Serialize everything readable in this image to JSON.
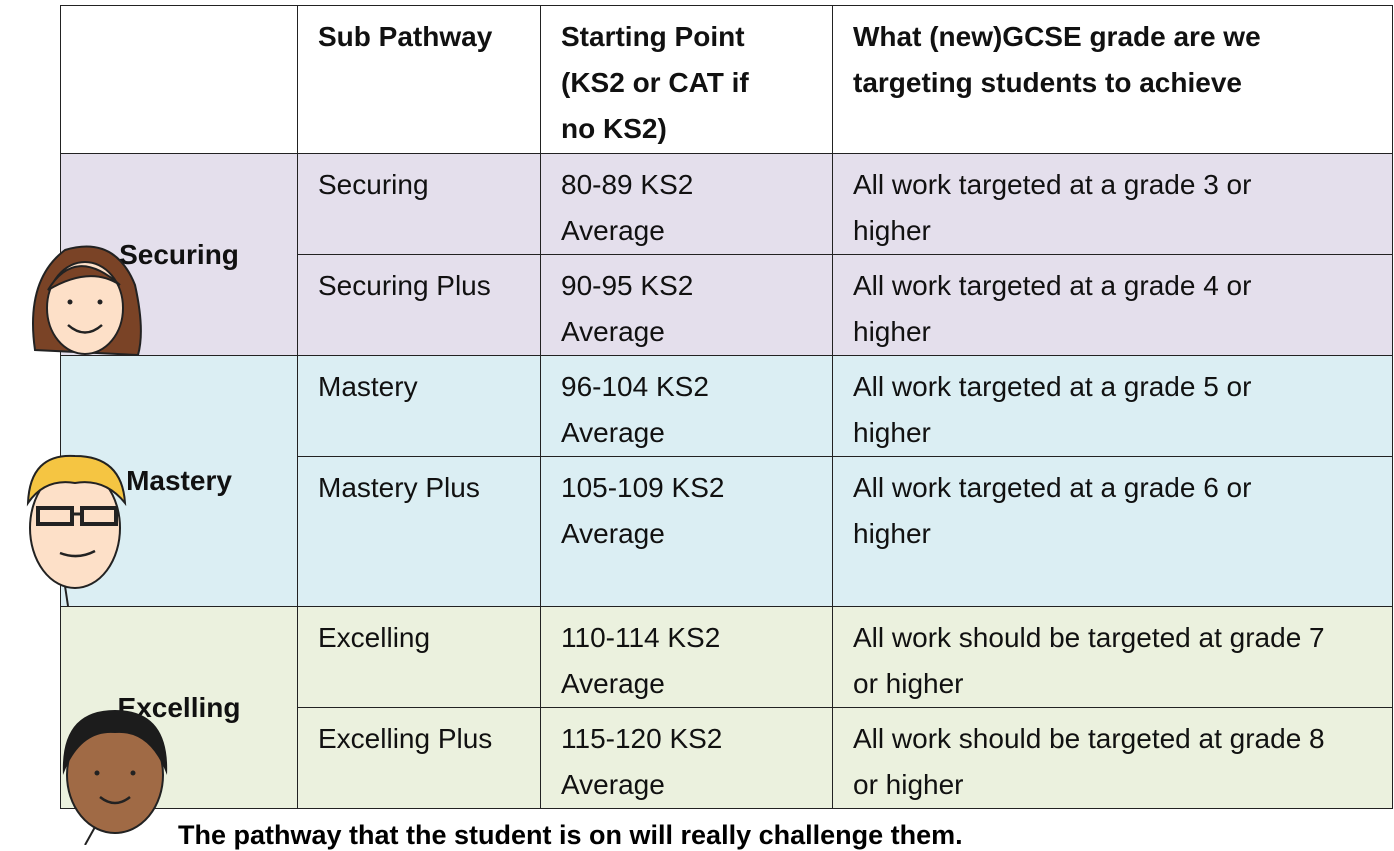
{
  "table": {
    "headers": [
      "Sub Pathway",
      "Starting Point (KS2 or CAT if no KS2)",
      "What (new)GCSE grade are we targeting students to achieve"
    ],
    "groups": [
      {
        "name": "Securing",
        "rows": [
          [
            "Securing",
            "80-89 KS2 Average",
            "All work targeted at a grade 3 or higher"
          ],
          [
            "Securing Plus",
            "90-95 KS2 Average",
            "All work targeted at a grade 4 or higher"
          ]
        ]
      },
      {
        "name": "Mastery",
        "rows": [
          [
            "Mastery",
            "96-104 KS2 Average",
            "All work targeted at a grade 5 or higher"
          ],
          [
            "Mastery Plus",
            "105-109 KS2 Average",
            "All work targeted at a grade 6 or higher"
          ]
        ]
      },
      {
        "name": "Excelling",
        "rows": [
          [
            "Excelling",
            "110-114 KS2 Average",
            "All work should be targeted at grade 7 or higher"
          ],
          [
            "Excelling Plus",
            "115-120 KS2 Average",
            "All work should be targeted at grade 8 or higher"
          ]
        ]
      }
    ]
  },
  "note": "The pathway that the student is on will really challenge them."
}
